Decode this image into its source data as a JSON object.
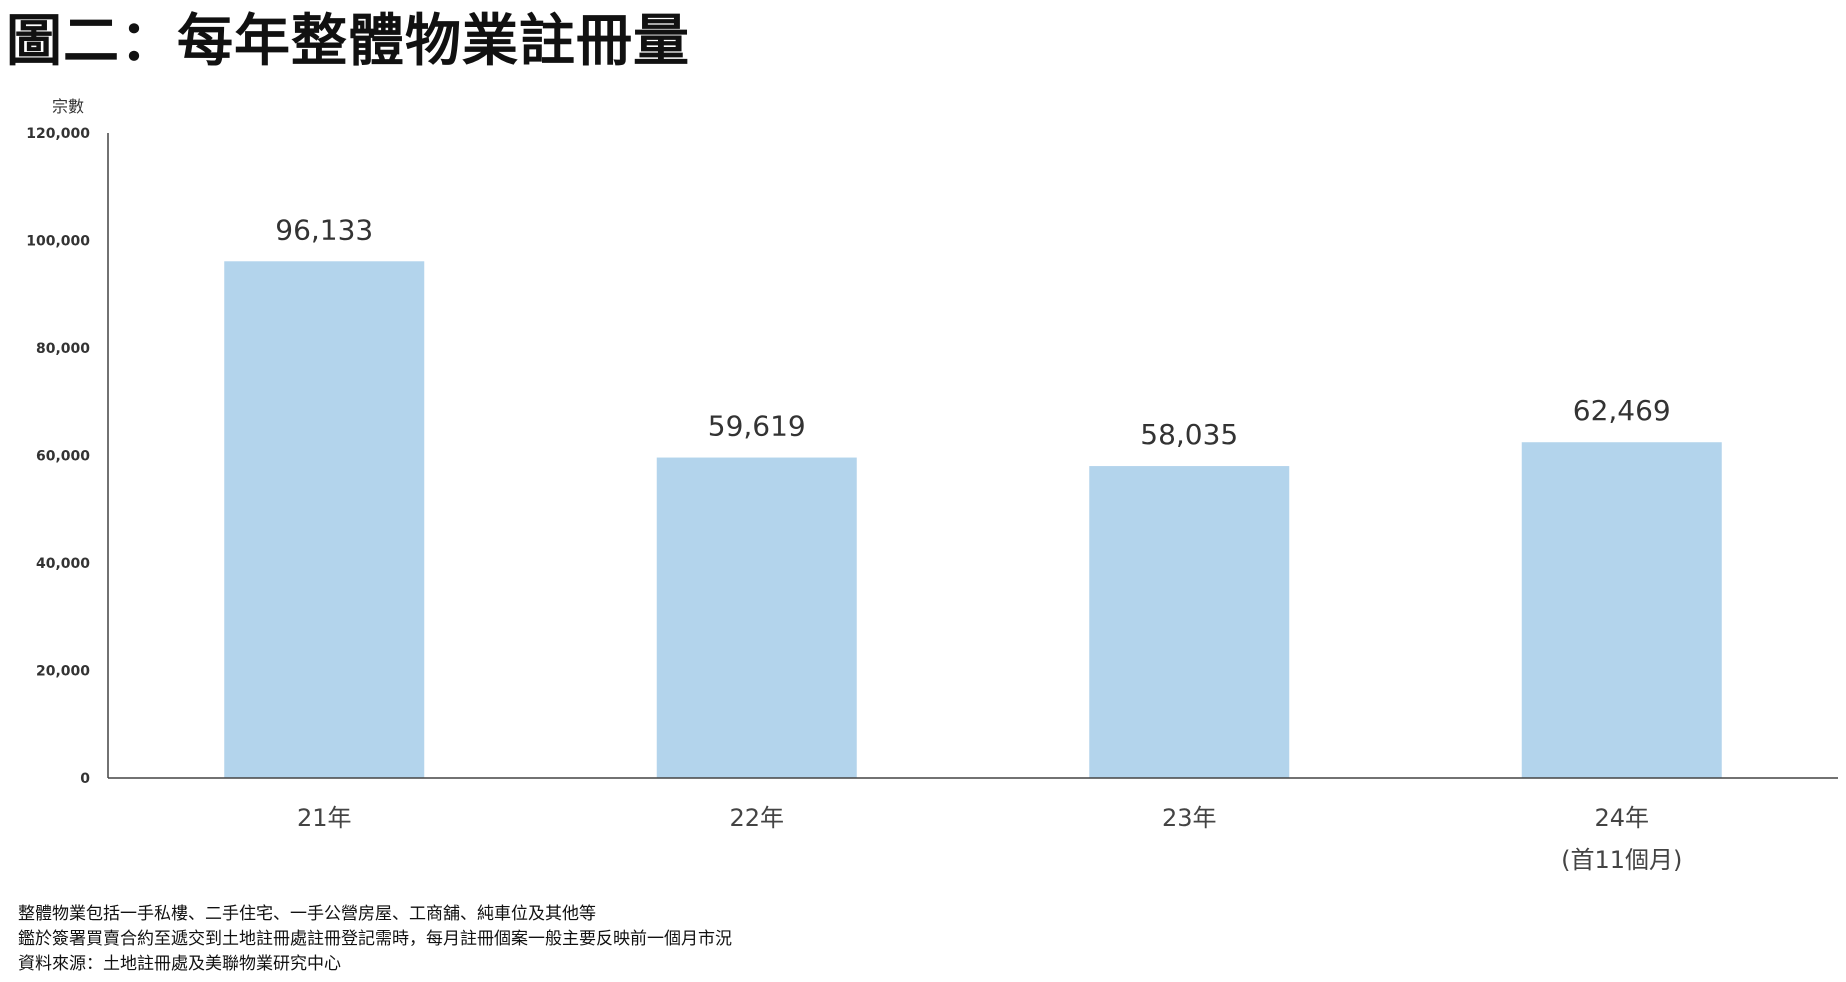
{
  "title": "圖二：每年整體物業註冊量",
  "chart_data": {
    "type": "bar",
    "title": "圖二：每年整體物業註冊量",
    "ylabel": "宗數",
    "xlabel": "",
    "categories": [
      "21年",
      "22年",
      "23年",
      "24年"
    ],
    "category_sublabels": [
      "",
      "",
      "",
      "(首11個月)"
    ],
    "values": [
      96133,
      59619,
      58035,
      62469
    ],
    "value_labels": [
      "96,133",
      "59,619",
      "58,035",
      "62,469"
    ],
    "ylim": [
      0,
      120000
    ],
    "yticks": [
      0,
      20000,
      40000,
      60000,
      80000,
      100000,
      120000
    ],
    "ytick_labels": [
      "0",
      "20,000",
      "40,000",
      "60,000",
      "80,000",
      "100,000",
      "120,000"
    ],
    "bar_color": "#b3d4ec",
    "grid": false,
    "legend": "none"
  },
  "notes": [
    "整體物業包括一手私樓、二手住宅、一手公營房屋、工商舖、純車位及其他等",
    "鑑於簽署買賣合約至遞交到土地註冊處註冊登記需時，每月註冊個案一般主要反映前一個月市況",
    "資料來源：土地註冊處及美聯物業研究中心"
  ]
}
